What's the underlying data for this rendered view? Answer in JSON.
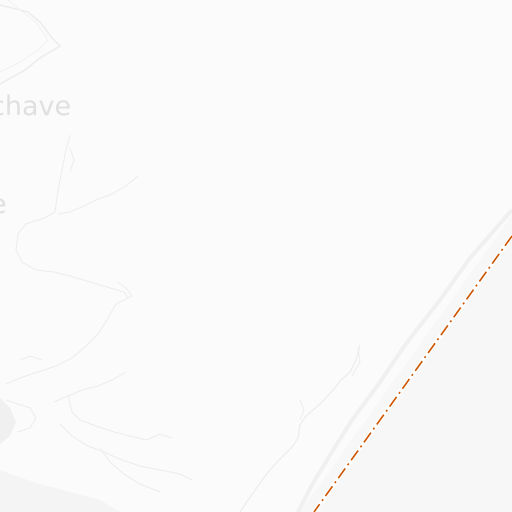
{
  "map": {
    "labels": {
      "place_1": "chave",
      "place_2": "e"
    },
    "colors": {
      "background": "#fbfbfb",
      "land_tint": "#f8f8f8",
      "border": "#cc5500",
      "rivers": "#ececec",
      "shadow": "#f2f2f2"
    }
  }
}
